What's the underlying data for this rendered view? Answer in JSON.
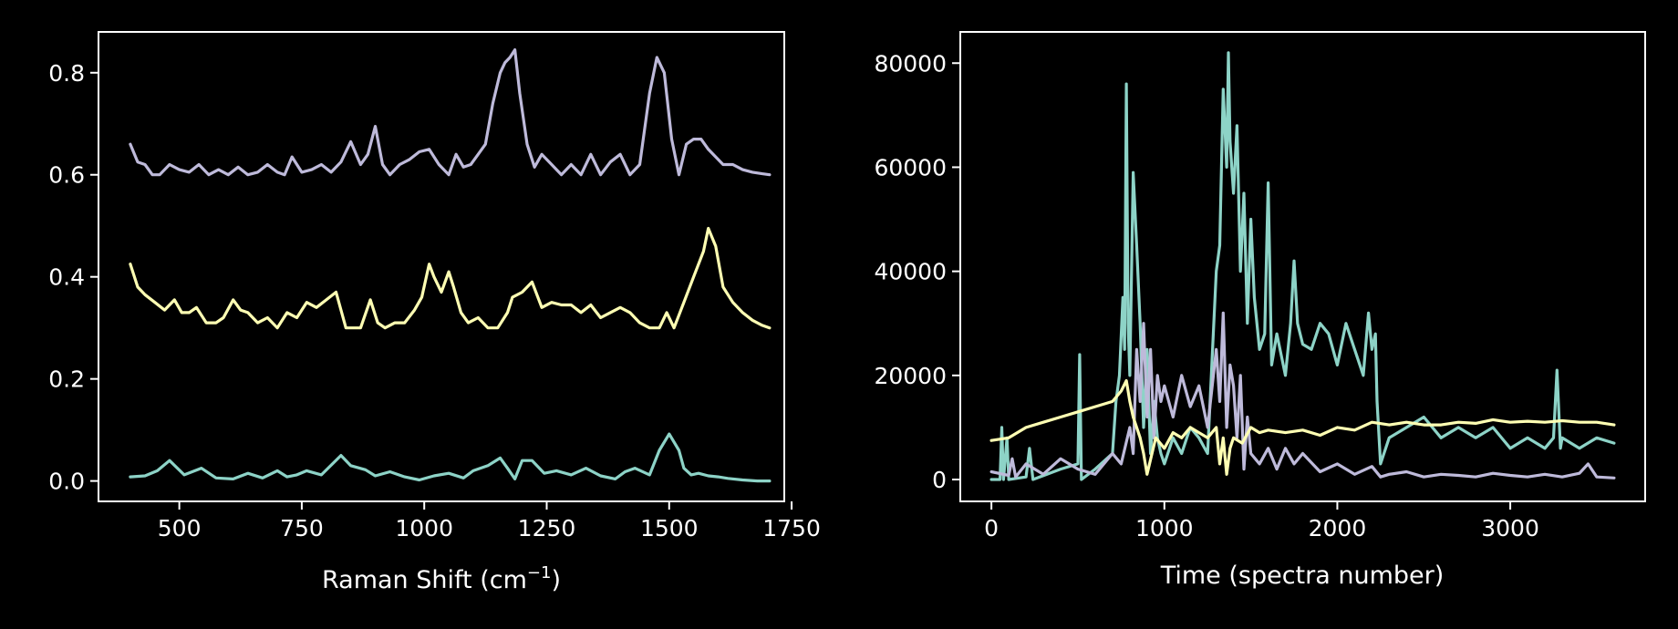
{
  "figure": {
    "background": "#000000",
    "foreground": "#ffffff"
  },
  "chart_data": [
    {
      "type": "line",
      "title": "",
      "xlabel": "Raman Shift (cm",
      "xlabel_sup": "−1",
      "xlabel_close": ")",
      "ylabel": "",
      "xlim": [
        335,
        1735
      ],
      "ylim": [
        -0.04,
        0.88
      ],
      "xticks": [
        500,
        750,
        1000,
        1250,
        1500,
        1750
      ],
      "xtick_labels": [
        "500",
        "750",
        "1000",
        "1250",
        "1500",
        "1750"
      ],
      "yticks": [
        0.0,
        0.2,
        0.4,
        0.6,
        0.8
      ],
      "ytick_labels": [
        "0.0",
        "0.2",
        "0.4",
        "0.6",
        "0.8"
      ],
      "grid": false,
      "legend": "none",
      "series": [
        {
          "color": "#8dd3c7",
          "x": [
            400,
            430,
            455,
            480,
            510,
            545,
            575,
            610,
            640,
            670,
            700,
            720,
            740,
            760,
            790,
            830,
            850,
            880,
            900,
            930,
            960,
            990,
            1020,
            1050,
            1080,
            1100,
            1130,
            1155,
            1170,
            1185,
            1200,
            1220,
            1245,
            1270,
            1300,
            1330,
            1360,
            1390,
            1410,
            1430,
            1460,
            1480,
            1500,
            1520,
            1530,
            1545,
            1560,
            1580,
            1600,
            1620,
            1650,
            1680,
            1705
          ],
          "y": [
            0.008,
            0.01,
            0.02,
            0.04,
            0.012,
            0.025,
            0.006,
            0.004,
            0.015,
            0.006,
            0.02,
            0.008,
            0.012,
            0.02,
            0.012,
            0.05,
            0.03,
            0.022,
            0.01,
            0.018,
            0.008,
            0.002,
            0.01,
            0.015,
            0.006,
            0.02,
            0.03,
            0.045,
            0.025,
            0.004,
            0.04,
            0.04,
            0.015,
            0.02,
            0.012,
            0.025,
            0.01,
            0.004,
            0.018,
            0.025,
            0.012,
            0.06,
            0.092,
            0.06,
            0.025,
            0.012,
            0.015,
            0.01,
            0.008,
            0.005,
            0.002,
            0.0,
            0.0
          ]
        },
        {
          "color": "#ffffb3",
          "x": [
            400,
            415,
            430,
            450,
            470,
            490,
            505,
            520,
            535,
            555,
            575,
            590,
            610,
            625,
            640,
            660,
            680,
            700,
            720,
            740,
            760,
            780,
            800,
            820,
            840,
            870,
            890,
            905,
            920,
            940,
            960,
            980,
            995,
            1010,
            1020,
            1035,
            1050,
            1060,
            1075,
            1090,
            1110,
            1130,
            1150,
            1170,
            1180,
            1200,
            1220,
            1240,
            1260,
            1280,
            1300,
            1320,
            1340,
            1360,
            1380,
            1400,
            1420,
            1440,
            1460,
            1480,
            1495,
            1510,
            1530,
            1550,
            1570,
            1580,
            1595,
            1610,
            1630,
            1650,
            1670,
            1690,
            1705
          ],
          "y": [
            0.425,
            0.38,
            0.365,
            0.35,
            0.335,
            0.355,
            0.33,
            0.33,
            0.34,
            0.31,
            0.31,
            0.32,
            0.355,
            0.335,
            0.33,
            0.31,
            0.32,
            0.3,
            0.33,
            0.32,
            0.35,
            0.34,
            0.355,
            0.37,
            0.3,
            0.3,
            0.355,
            0.31,
            0.3,
            0.31,
            0.31,
            0.335,
            0.36,
            0.425,
            0.4,
            0.37,
            0.41,
            0.38,
            0.33,
            0.31,
            0.32,
            0.3,
            0.3,
            0.33,
            0.36,
            0.37,
            0.39,
            0.34,
            0.35,
            0.345,
            0.345,
            0.33,
            0.345,
            0.32,
            0.33,
            0.34,
            0.33,
            0.31,
            0.3,
            0.3,
            0.33,
            0.3,
            0.35,
            0.4,
            0.45,
            0.495,
            0.46,
            0.38,
            0.35,
            0.33,
            0.315,
            0.305,
            0.3
          ]
        },
        {
          "color": "#bebada",
          "x": [
            400,
            415,
            430,
            445,
            460,
            480,
            500,
            520,
            540,
            560,
            580,
            600,
            620,
            640,
            660,
            680,
            700,
            715,
            730,
            750,
            770,
            790,
            810,
            830,
            850,
            870,
            885,
            900,
            915,
            930,
            950,
            970,
            990,
            1010,
            1030,
            1050,
            1065,
            1080,
            1095,
            1110,
            1125,
            1140,
            1155,
            1165,
            1175,
            1185,
            1195,
            1210,
            1225,
            1240,
            1260,
            1280,
            1300,
            1320,
            1340,
            1360,
            1380,
            1400,
            1420,
            1440,
            1460,
            1475,
            1490,
            1505,
            1520,
            1535,
            1550,
            1565,
            1580,
            1595,
            1610,
            1630,
            1650,
            1670,
            1690,
            1705
          ],
          "y": [
            0.66,
            0.625,
            0.62,
            0.6,
            0.6,
            0.62,
            0.61,
            0.605,
            0.62,
            0.6,
            0.61,
            0.6,
            0.615,
            0.6,
            0.605,
            0.62,
            0.605,
            0.6,
            0.635,
            0.605,
            0.61,
            0.62,
            0.605,
            0.625,
            0.665,
            0.62,
            0.64,
            0.695,
            0.62,
            0.6,
            0.62,
            0.63,
            0.645,
            0.65,
            0.62,
            0.6,
            0.64,
            0.615,
            0.62,
            0.64,
            0.66,
            0.74,
            0.8,
            0.82,
            0.83,
            0.845,
            0.76,
            0.66,
            0.615,
            0.64,
            0.62,
            0.6,
            0.62,
            0.6,
            0.64,
            0.6,
            0.625,
            0.64,
            0.6,
            0.62,
            0.76,
            0.83,
            0.8,
            0.67,
            0.6,
            0.66,
            0.67,
            0.67,
            0.65,
            0.635,
            0.62,
            0.62,
            0.61,
            0.605,
            0.602,
            0.6
          ]
        }
      ]
    },
    {
      "type": "line",
      "title": "",
      "xlabel": "Time (spectra number)",
      "ylabel": "",
      "xlim": [
        -180,
        3780
      ],
      "ylim": [
        -4200,
        86000
      ],
      "xticks": [
        0,
        1000,
        2000,
        3000
      ],
      "xtick_labels": [
        "0",
        "1000",
        "2000",
        "3000"
      ],
      "yticks": [
        0,
        20000,
        40000,
        60000,
        80000
      ],
      "ytick_labels": [
        "0",
        "20000",
        "40000",
        "60000",
        "80000"
      ],
      "grid": false,
      "legend": "none",
      "series": [
        {
          "color": "#8dd3c7",
          "x": [
            0,
            50,
            60,
            70,
            90,
            100,
            200,
            220,
            240,
            400,
            500,
            510,
            520,
            600,
            700,
            720,
            740,
            760,
            770,
            780,
            790,
            800,
            820,
            840,
            860,
            880,
            900,
            920,
            940,
            960,
            980,
            1000,
            1050,
            1100,
            1150,
            1200,
            1250,
            1300,
            1320,
            1340,
            1360,
            1370,
            1380,
            1400,
            1420,
            1440,
            1460,
            1480,
            1500,
            1520,
            1550,
            1580,
            1600,
            1620,
            1650,
            1700,
            1730,
            1750,
            1770,
            1800,
            1850,
            1900,
            1950,
            2000,
            2050,
            2100,
            2150,
            2180,
            2200,
            2220,
            2230,
            2250,
            2300,
            2400,
            2500,
            2600,
            2700,
            2800,
            2900,
            3000,
            3100,
            3200,
            3250,
            3270,
            3290,
            3300,
            3400,
            3500,
            3600
          ],
          "y": [
            0,
            0,
            10000,
            0,
            8000,
            0,
            500,
            6000,
            0,
            2000,
            3000,
            24000,
            0,
            2000,
            5000,
            15000,
            20000,
            35000,
            25000,
            76000,
            30000,
            20000,
            59000,
            45000,
            30000,
            10000,
            25000,
            5000,
            15000,
            8000,
            5000,
            3000,
            8000,
            5000,
            10000,
            8000,
            5000,
            40000,
            45000,
            75000,
            60000,
            82000,
            65000,
            55000,
            68000,
            40000,
            55000,
            30000,
            50000,
            35000,
            25000,
            28000,
            57000,
            22000,
            28000,
            20000,
            30000,
            42000,
            30000,
            26000,
            25000,
            30000,
            28000,
            22000,
            30000,
            25000,
            20000,
            32000,
            25000,
            28000,
            15000,
            3000,
            8000,
            10000,
            12000,
            8000,
            10000,
            8000,
            10000,
            6000,
            8000,
            6000,
            8000,
            21000,
            6000,
            8000,
            6000,
            8000,
            7000
          ]
        },
        {
          "color": "#bebada",
          "x": [
            0,
            100,
            120,
            140,
            200,
            300,
            400,
            500,
            600,
            700,
            750,
            800,
            820,
            840,
            860,
            880,
            900,
            920,
            940,
            960,
            980,
            1000,
            1050,
            1100,
            1150,
            1200,
            1250,
            1300,
            1320,
            1340,
            1360,
            1380,
            1400,
            1420,
            1440,
            1460,
            1480,
            1500,
            1550,
            1600,
            1650,
            1700,
            1750,
            1800,
            1900,
            2000,
            2100,
            2200,
            2250,
            2300,
            2400,
            2500,
            2600,
            2700,
            2800,
            2900,
            3000,
            3100,
            3200,
            3300,
            3400,
            3450,
            3500,
            3600
          ],
          "y": [
            1500,
            800,
            4000,
            500,
            3000,
            1000,
            4000,
            2000,
            1000,
            5000,
            3000,
            10000,
            5000,
            25000,
            15000,
            30000,
            12000,
            25000,
            8000,
            20000,
            15000,
            18000,
            12000,
            20000,
            14000,
            18000,
            10000,
            25000,
            15000,
            32000,
            10000,
            22000,
            18000,
            8000,
            20000,
            2000,
            12000,
            5000,
            3000,
            6000,
            2000,
            6000,
            3000,
            5000,
            1500,
            3000,
            1000,
            2500,
            500,
            1000,
            1500,
            500,
            1000,
            800,
            500,
            1200,
            800,
            500,
            1000,
            500,
            1200,
            3000,
            500,
            300
          ]
        },
        {
          "color": "#ffffb3",
          "x": [
            0,
            100,
            200,
            300,
            400,
            500,
            600,
            700,
            750,
            780,
            800,
            820,
            840,
            860,
            880,
            900,
            950,
            1000,
            1050,
            1100,
            1150,
            1200,
            1250,
            1300,
            1320,
            1340,
            1360,
            1380,
            1400,
            1450,
            1500,
            1550,
            1600,
            1700,
            1800,
            1900,
            2000,
            2100,
            2200,
            2300,
            2400,
            2500,
            2600,
            2700,
            2800,
            2900,
            3000,
            3100,
            3200,
            3300,
            3400,
            3500,
            3600
          ],
          "y": [
            7500,
            8000,
            10000,
            11000,
            12000,
            13000,
            14000,
            15000,
            17000,
            19000,
            15000,
            12000,
            10000,
            8000,
            5000,
            1000,
            8000,
            6000,
            9000,
            8000,
            10000,
            9000,
            8000,
            10000,
            3000,
            8000,
            1000,
            6000,
            8000,
            7000,
            10000,
            9000,
            9500,
            9000,
            9500,
            8500,
            10000,
            9500,
            11000,
            10500,
            11000,
            10500,
            10500,
            11000,
            10800,
            11500,
            11000,
            11200,
            11000,
            11300,
            11000,
            11000,
            10500
          ]
        }
      ]
    }
  ]
}
